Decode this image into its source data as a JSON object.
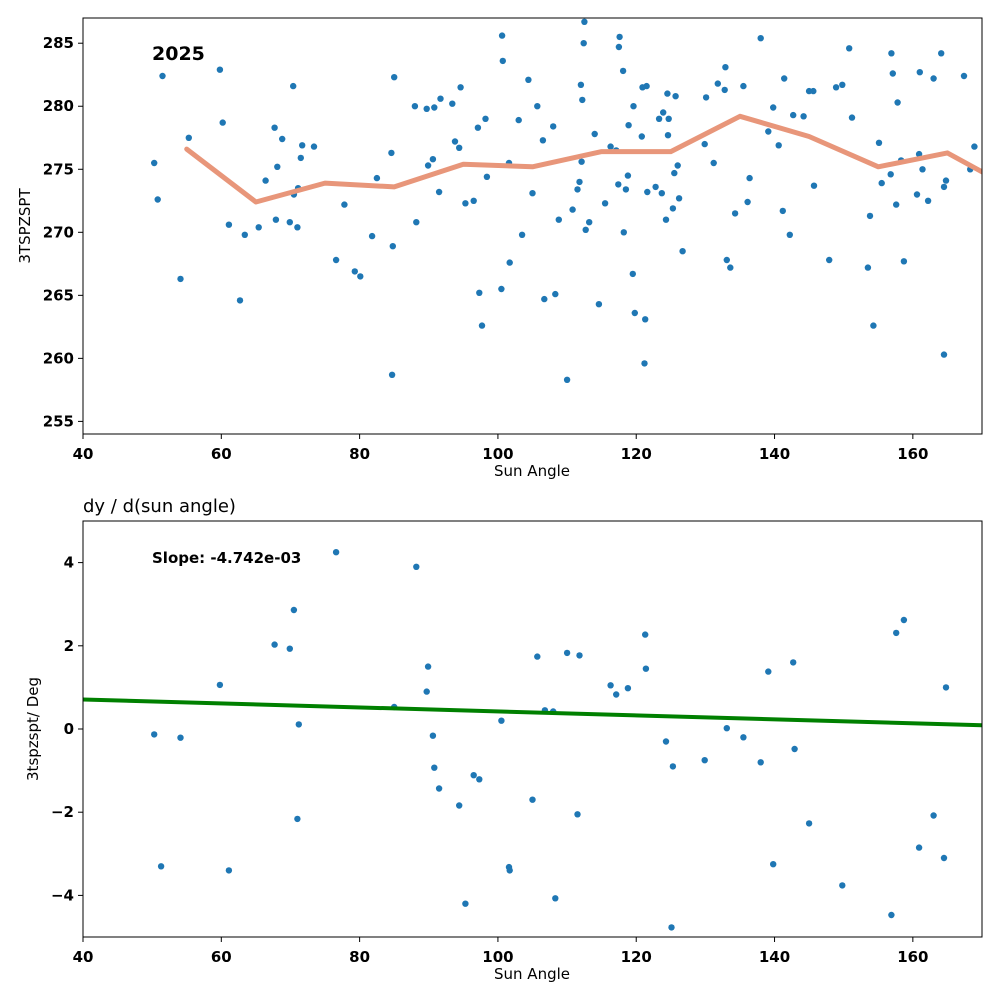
{
  "chart_data": [
    {
      "type": "scatter",
      "xlabel": "Sun Angle",
      "ylabel": "3TSPZSPT",
      "xlim": [
        40,
        170
      ],
      "ylim": [
        254,
        287
      ],
      "xticks": [
        40,
        60,
        80,
        100,
        120,
        140,
        160
      ],
      "yticks": [
        255,
        260,
        265,
        270,
        275,
        280,
        285
      ],
      "annotation": "2025",
      "grid": false,
      "colors": {
        "points": "#1f77b4",
        "trend": "#e8967a"
      },
      "points": [
        [
          50.3,
          275.5
        ],
        [
          50.8,
          272.6
        ],
        [
          51.5,
          282.4
        ],
        [
          54.1,
          266.3
        ],
        [
          55.3,
          277.5
        ],
        [
          59.8,
          282.9
        ],
        [
          60.2,
          278.7
        ],
        [
          61.1,
          270.6
        ],
        [
          62.7,
          264.6
        ],
        [
          63.4,
          269.8
        ],
        [
          65.4,
          270.4
        ],
        [
          66.4,
          274.1
        ],
        [
          67.7,
          278.3
        ],
        [
          67.9,
          271.0
        ],
        [
          68.1,
          275.2
        ],
        [
          68.8,
          277.4
        ],
        [
          69.9,
          270.8
        ],
        [
          70.4,
          281.6
        ],
        [
          70.5,
          273.0
        ],
        [
          71.0,
          270.4
        ],
        [
          71.1,
          273.5
        ],
        [
          71.5,
          275.9
        ],
        [
          71.7,
          276.9
        ],
        [
          73.4,
          276.8
        ],
        [
          76.6,
          267.8
        ],
        [
          77.8,
          272.2
        ],
        [
          79.3,
          266.9
        ],
        [
          80.1,
          266.5
        ],
        [
          81.8,
          269.7
        ],
        [
          82.5,
          274.3
        ],
        [
          84.6,
          276.3
        ],
        [
          84.7,
          258.7
        ],
        [
          84.8,
          268.9
        ],
        [
          85.0,
          282.3
        ],
        [
          88.0,
          280.0
        ],
        [
          88.2,
          270.8
        ],
        [
          89.7,
          279.8
        ],
        [
          89.9,
          275.3
        ],
        [
          90.6,
          275.8
        ],
        [
          90.8,
          279.9
        ],
        [
          91.5,
          273.2
        ],
        [
          91.7,
          280.6
        ],
        [
          93.4,
          280.2
        ],
        [
          93.8,
          277.2
        ],
        [
          94.4,
          276.7
        ],
        [
          94.6,
          281.5
        ],
        [
          95.3,
          272.3
        ],
        [
          96.5,
          272.5
        ],
        [
          97.1,
          278.3
        ],
        [
          97.3,
          265.2
        ],
        [
          97.7,
          262.6
        ],
        [
          98.2,
          279.0
        ],
        [
          98.4,
          274.4
        ],
        [
          100.5,
          265.5
        ],
        [
          100.6,
          285.6
        ],
        [
          100.7,
          283.6
        ],
        [
          101.6,
          275.5
        ],
        [
          101.7,
          267.6
        ],
        [
          103.0,
          278.9
        ],
        [
          103.5,
          269.8
        ],
        [
          104.4,
          282.1
        ],
        [
          105.0,
          273.1
        ],
        [
          105.7,
          280.0
        ],
        [
          106.5,
          277.3
        ],
        [
          106.7,
          264.7
        ],
        [
          108.0,
          278.4
        ],
        [
          108.3,
          265.1
        ],
        [
          108.8,
          271.0
        ],
        [
          110.0,
          258.3
        ],
        [
          110.8,
          271.8
        ],
        [
          111.5,
          273.4
        ],
        [
          111.8,
          274.0
        ],
        [
          112.0,
          281.7
        ],
        [
          112.1,
          275.6
        ],
        [
          112.2,
          280.5
        ],
        [
          112.4,
          285.0
        ],
        [
          112.5,
          286.7
        ],
        [
          112.7,
          270.2
        ],
        [
          113.2,
          270.8
        ],
        [
          114.0,
          277.8
        ],
        [
          114.6,
          264.3
        ],
        [
          115.5,
          272.3
        ],
        [
          116.3,
          276.8
        ],
        [
          117.1,
          276.5
        ],
        [
          117.4,
          273.8
        ],
        [
          117.5,
          284.7
        ],
        [
          117.6,
          285.5
        ],
        [
          118.1,
          282.8
        ],
        [
          118.2,
          270.0
        ],
        [
          118.5,
          273.4
        ],
        [
          118.8,
          274.5
        ],
        [
          118.9,
          278.5
        ],
        [
          119.5,
          266.7
        ],
        [
          119.6,
          280.0
        ],
        [
          119.8,
          263.6
        ],
        [
          120.8,
          277.6
        ],
        [
          120.9,
          281.5
        ],
        [
          121.2,
          259.6
        ],
        [
          121.3,
          263.1
        ],
        [
          121.5,
          281.6
        ],
        [
          121.6,
          273.2
        ],
        [
          122.8,
          273.6
        ],
        [
          123.3,
          279.0
        ],
        [
          123.7,
          273.1
        ],
        [
          123.9,
          279.5
        ],
        [
          124.3,
          271.0
        ],
        [
          124.5,
          281.0
        ],
        [
          124.6,
          277.7
        ],
        [
          124.7,
          279.0
        ],
        [
          125.3,
          271.9
        ],
        [
          125.5,
          274.7
        ],
        [
          125.7,
          280.8
        ],
        [
          126.0,
          275.3
        ],
        [
          126.2,
          272.7
        ],
        [
          126.7,
          268.5
        ],
        [
          129.9,
          277.0
        ],
        [
          130.1,
          280.7
        ],
        [
          131.2,
          275.5
        ],
        [
          131.8,
          281.8
        ],
        [
          132.8,
          281.3
        ],
        [
          132.9,
          283.1
        ],
        [
          133.1,
          267.8
        ],
        [
          133.6,
          267.2
        ],
        [
          134.3,
          271.5
        ],
        [
          135.5,
          281.6
        ],
        [
          136.1,
          272.4
        ],
        [
          136.4,
          274.3
        ],
        [
          138.0,
          285.4
        ],
        [
          139.1,
          278.0
        ],
        [
          139.8,
          279.9
        ],
        [
          140.6,
          276.9
        ],
        [
          141.2,
          271.7
        ],
        [
          141.4,
          282.2
        ],
        [
          142.2,
          269.8
        ],
        [
          142.7,
          279.3
        ],
        [
          144.2,
          279.2
        ],
        [
          145.0,
          281.2
        ],
        [
          145.6,
          281.2
        ],
        [
          145.7,
          273.7
        ],
        [
          147.9,
          267.8
        ],
        [
          148.9,
          281.5
        ],
        [
          149.8,
          281.7
        ],
        [
          150.8,
          284.6
        ],
        [
          151.2,
          279.1
        ],
        [
          153.5,
          267.2
        ],
        [
          153.8,
          271.3
        ],
        [
          154.3,
          262.6
        ],
        [
          155.1,
          277.1
        ],
        [
          155.5,
          273.9
        ],
        [
          156.8,
          274.6
        ],
        [
          156.9,
          284.2
        ],
        [
          157.1,
          282.6
        ],
        [
          157.6,
          272.2
        ],
        [
          157.8,
          280.3
        ],
        [
          158.3,
          275.7
        ],
        [
          158.7,
          267.7
        ],
        [
          160.6,
          273.0
        ],
        [
          160.9,
          276.2
        ],
        [
          161.0,
          282.7
        ],
        [
          161.4,
          275.0
        ],
        [
          162.2,
          272.5
        ],
        [
          163.0,
          282.2
        ],
        [
          164.1,
          284.2
        ],
        [
          164.5,
          260.3
        ],
        [
          164.5,
          273.6
        ],
        [
          164.8,
          274.1
        ],
        [
          167.4,
          282.4
        ],
        [
          168.3,
          275.0
        ],
        [
          168.9,
          276.8
        ]
      ],
      "trend": [
        [
          55,
          276.6
        ],
        [
          65,
          272.4
        ],
        [
          75,
          273.9
        ],
        [
          85,
          273.6
        ],
        [
          95,
          275.4
        ],
        [
          105,
          275.2
        ],
        [
          115,
          276.4
        ],
        [
          125,
          276.4
        ],
        [
          135,
          279.2
        ],
        [
          145,
          277.6
        ],
        [
          155,
          275.2
        ],
        [
          165,
          276.3
        ],
        [
          170,
          274.8
        ]
      ]
    },
    {
      "type": "scatter",
      "title": "dy / d(sun angle)",
      "xlabel": "Sun Angle",
      "ylabel": "3tspzspt/ Deg",
      "xlim": [
        40,
        170
      ],
      "ylim": [
        -5,
        5
      ],
      "xticks": [
        40,
        60,
        80,
        100,
        120,
        140,
        160
      ],
      "yticks": [
        -4,
        -2,
        0,
        2,
        4
      ],
      "annotation": "Slope: -4.742e-03",
      "grid": false,
      "colors": {
        "points": "#1f77b4",
        "fit": "#008000"
      },
      "points": [
        [
          50.3,
          -0.13
        ],
        [
          51.3,
          -3.3
        ],
        [
          54.1,
          -0.21
        ],
        [
          59.8,
          1.06
        ],
        [
          61.1,
          -3.4
        ],
        [
          67.7,
          2.03
        ],
        [
          69.9,
          1.93
        ],
        [
          70.5,
          2.86
        ],
        [
          71.0,
          -2.16
        ],
        [
          71.2,
          0.11
        ],
        [
          76.6,
          4.25
        ],
        [
          85.0,
          0.53
        ],
        [
          88.2,
          3.9
        ],
        [
          89.7,
          0.9
        ],
        [
          89.9,
          1.5
        ],
        [
          90.6,
          -0.16
        ],
        [
          90.8,
          -0.93
        ],
        [
          91.5,
          -1.43
        ],
        [
          94.4,
          -1.84
        ],
        [
          95.3,
          -4.2
        ],
        [
          96.5,
          -1.11
        ],
        [
          97.3,
          -1.21
        ],
        [
          100.5,
          0.2
        ],
        [
          101.6,
          -3.32
        ],
        [
          101.7,
          -3.4
        ],
        [
          105.0,
          -1.7
        ],
        [
          105.7,
          1.74
        ],
        [
          106.8,
          0.45
        ],
        [
          108.0,
          0.42
        ],
        [
          108.3,
          -4.07
        ],
        [
          110.0,
          1.83
        ],
        [
          111.5,
          -2.05
        ],
        [
          111.8,
          1.77
        ],
        [
          116.3,
          1.05
        ],
        [
          117.1,
          0.83
        ],
        [
          118.8,
          0.98
        ],
        [
          121.3,
          2.27
        ],
        [
          121.4,
          1.45
        ],
        [
          124.3,
          -0.3
        ],
        [
          125.3,
          -0.9
        ],
        [
          125.1,
          -4.77
        ],
        [
          129.9,
          -0.75
        ],
        [
          133.1,
          0.02
        ],
        [
          135.5,
          -0.2
        ],
        [
          138.0,
          -0.8
        ],
        [
          139.1,
          1.38
        ],
        [
          139.8,
          -3.25
        ],
        [
          142.7,
          1.6
        ],
        [
          142.9,
          -0.48
        ],
        [
          145.0,
          -2.27
        ],
        [
          149.8,
          -3.76
        ],
        [
          156.9,
          -4.47
        ],
        [
          157.6,
          2.31
        ],
        [
          158.7,
          2.62
        ],
        [
          160.9,
          -2.85
        ],
        [
          163.0,
          -2.08
        ],
        [
          164.5,
          -3.1
        ],
        [
          164.8,
          1.0
        ]
      ],
      "fit_line": [
        [
          40,
          0.71
        ],
        [
          170,
          0.09
        ]
      ]
    }
  ]
}
